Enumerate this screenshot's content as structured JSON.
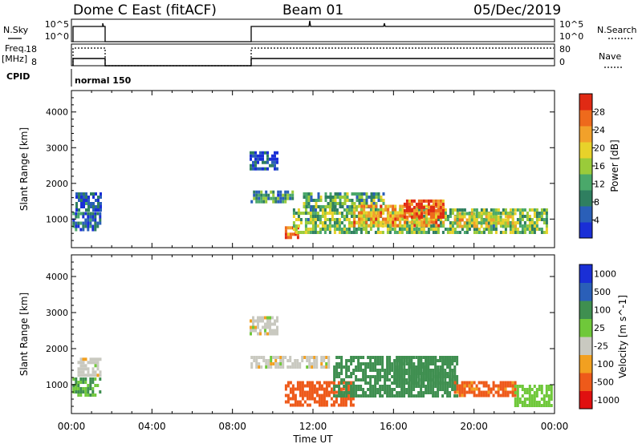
{
  "header": {
    "title": "Dome C East (fitACF)",
    "beam": "Beam 01",
    "date": "05/Dec/2019"
  },
  "panels": {
    "nsky": {
      "label": "N.Sky",
      "ticks": [
        "10^5",
        "10^0"
      ]
    },
    "nsearch": {
      "label": "N.Search",
      "ticks": [
        "10^5",
        "10^0"
      ]
    },
    "freq": {
      "label_line1": "Freq.",
      "label_line2": "[MHz]",
      "ticks": [
        "18",
        "8"
      ]
    },
    "nave": {
      "label": "Nave",
      "ticks": [
        "80",
        "0"
      ]
    },
    "cpid": {
      "label": "CPID",
      "value": "normal 150"
    }
  },
  "x_axis": {
    "label": "Time UT",
    "tick_labels": [
      "00:00",
      "04:00",
      "08:00",
      "12:00",
      "16:00",
      "20:00",
      "00:00"
    ],
    "range_hours": [
      0,
      24
    ]
  },
  "colors": {
    "power": [
      "#1a2fd6",
      "#2a5fb8",
      "#2f7f60",
      "#4aa86a",
      "#9acb3a",
      "#e8d22a",
      "#f2a12a",
      "#ee6a1c",
      "#e02a14"
    ],
    "velocity": [
      "#e01010",
      "#ee5a1a",
      "#f2a020",
      "#c9c9c0",
      "#6fc83a",
      "#3f8f50",
      "#2a5fb8",
      "#1a2fd6"
    ]
  },
  "chart_data": [
    {
      "type": "heatmap",
      "name": "power",
      "ylabel": "Slant Range [km]",
      "xlabel": "",
      "xlim": [
        0,
        24
      ],
      "ylim": [
        200,
        4600
      ],
      "y_ticks": [
        1000,
        2000,
        3000,
        4000
      ],
      "colorbar": {
        "label": "Power [dB]",
        "ticks": [
          4,
          8,
          12,
          16,
          20,
          24,
          28
        ],
        "range": [
          0,
          32
        ]
      },
      "regions": [
        {
          "t": [
            0.05,
            1.45
          ],
          "r": [
            700,
            1200
          ],
          "value": 6
        },
        {
          "t": [
            0.2,
            1.4
          ],
          "r": [
            1250,
            1750
          ],
          "value": 4
        },
        {
          "t": [
            8.85,
            10.2
          ],
          "r": [
            2400,
            2900
          ],
          "value": 4
        },
        {
          "t": [
            8.9,
            11.0
          ],
          "r": [
            1450,
            1800
          ],
          "value": 10
        },
        {
          "t": [
            10.6,
            11.3
          ],
          "r": [
            500,
            800
          ],
          "value": 26
        },
        {
          "t": [
            11.0,
            23.6
          ],
          "r": [
            600,
            1300
          ],
          "value": 14
        },
        {
          "t": [
            11.5,
            15.5
          ],
          "r": [
            1350,
            1750
          ],
          "value": 12
        },
        {
          "t": [
            14.0,
            18.5
          ],
          "r": [
            800,
            1400
          ],
          "value": 22
        },
        {
          "t": [
            16.5,
            18.5
          ],
          "r": [
            1100,
            1550
          ],
          "value": 28
        },
        {
          "t": [
            19.0,
            22.0
          ],
          "r": [
            800,
            1200
          ],
          "value": 18
        }
      ]
    },
    {
      "type": "heatmap",
      "name": "velocity",
      "ylabel": "Slant Range [km]",
      "xlabel": "Time UT",
      "xlim": [
        0,
        24
      ],
      "ylim": [
        200,
        4600
      ],
      "y_ticks": [
        1000,
        2000,
        3000,
        4000
      ],
      "colorbar": {
        "label": "Velocity [m s^-1]",
        "ticks": [
          "1000",
          "500",
          "100",
          "25",
          "-25",
          "-100",
          "-500",
          "-1000"
        ]
      },
      "regions": [
        {
          "t": [
            0.05,
            1.45
          ],
          "r": [
            700,
            1200
          ],
          "value": 100
        },
        {
          "t": [
            0.3,
            1.4
          ],
          "r": [
            1300,
            1750
          ],
          "value": 0
        },
        {
          "t": [
            8.85,
            10.2
          ],
          "r": [
            2400,
            2900
          ],
          "value": 0
        },
        {
          "t": [
            8.9,
            12.8
          ],
          "r": [
            1450,
            1800
          ],
          "value": 0
        },
        {
          "t": [
            10.6,
            14.0
          ],
          "r": [
            400,
            1100
          ],
          "value": -200
        },
        {
          "t": [
            13.0,
            19.2
          ],
          "r": [
            700,
            1800
          ],
          "value": 200
        },
        {
          "t": [
            16.0,
            19.0
          ],
          "r": [
            1000,
            1800
          ],
          "value": 300
        },
        {
          "t": [
            19.0,
            22.0
          ],
          "r": [
            700,
            1100
          ],
          "value": -150
        },
        {
          "t": [
            22.0,
            23.8
          ],
          "r": [
            400,
            1000
          ],
          "value": 60
        }
      ]
    }
  ]
}
